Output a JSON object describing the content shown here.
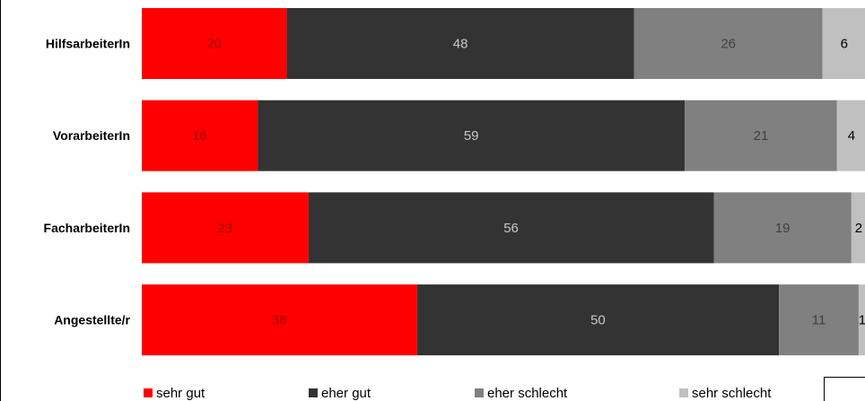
{
  "chart_data": {
    "type": "bar",
    "orientation": "horizontal",
    "stacked": true,
    "categories": [
      "HilfsarbeiterIn",
      "VorarbeiterIn",
      "FacharbeiterIn",
      "Angestellte/r"
    ],
    "series": [
      {
        "name": "sehr gut",
        "values": [
          20,
          16,
          23,
          38
        ],
        "color": "#ff0000"
      },
      {
        "name": "eher gut",
        "values": [
          48,
          59,
          56,
          50
        ],
        "color": "#333333"
      },
      {
        "name": "eher schlecht",
        "values": [
          26,
          21,
          19,
          11
        ],
        "color": "#808080"
      },
      {
        "name": "sehr schlecht",
        "values": [
          6,
          4,
          2,
          1
        ],
        "color": "#c0c0c0"
      }
    ],
    "xlim": [
      0,
      100
    ],
    "legend_position": "bottom",
    "grid": false
  }
}
